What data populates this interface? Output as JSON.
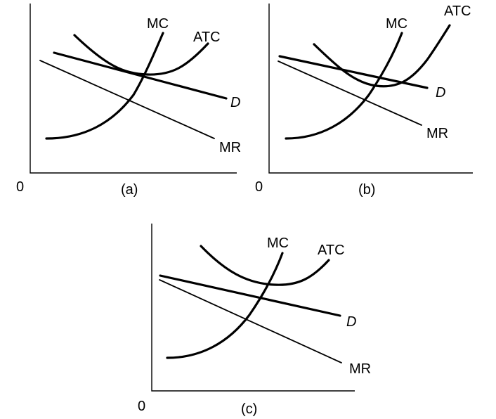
{
  "panels": [
    {
      "id": "a",
      "caption": "(a)",
      "origin_label": "0",
      "curves": {
        "mc": "MC",
        "atc": "ATC",
        "demand": "D",
        "mr": "MR"
      }
    },
    {
      "id": "b",
      "caption": "(b)",
      "origin_label": "0",
      "curves": {
        "mc": "MC",
        "atc": "ATC",
        "demand": "D",
        "mr": "MR"
      }
    },
    {
      "id": "c",
      "caption": "(c)",
      "origin_label": "0",
      "curves": {
        "mc": "MC",
        "atc": "ATC",
        "demand": "D",
        "mr": "MR"
      }
    }
  ]
}
